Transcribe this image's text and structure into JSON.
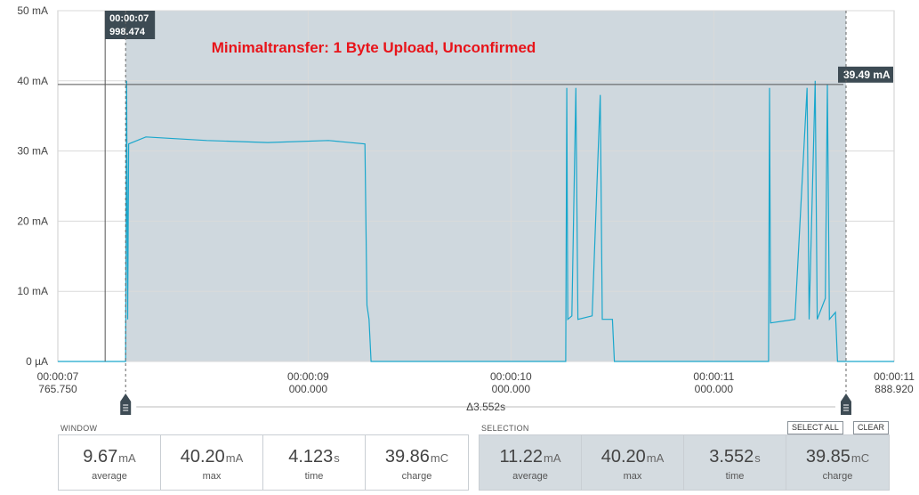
{
  "chart_data": {
    "type": "line",
    "title": "Minimaltransfer: 1 Byte Upload, Unconfirmed",
    "xlabel": "",
    "ylabel": "",
    "y_ticks": [
      "0 µA",
      "10 mA",
      "20 mA",
      "30 mA",
      "40 mA",
      "50 mA"
    ],
    "ylim": [
      0,
      50
    ],
    "y_unit": "mA",
    "x_range_s": [
      7.76575,
      11.88892
    ],
    "x_ticks": [
      {
        "t": 7.76575,
        "time": "00:00:07",
        "sub": "765.750"
      },
      {
        "t": 9.0,
        "time": "00:00:09",
        "sub": "000.000"
      },
      {
        "t": 10.0,
        "time": "00:00:10",
        "sub": "000.000"
      },
      {
        "t": 11.0,
        "time": "00:00:11",
        "sub": "000.000"
      },
      {
        "t": 11.88892,
        "time": "00:00:11",
        "sub": "888.920"
      }
    ],
    "grid": true,
    "series": [
      {
        "color": "#1aa7cc",
        "points": [
          [
            7.76575,
            0
          ],
          [
            8.1,
            0
          ],
          [
            8.105,
            40
          ],
          [
            8.11,
            6
          ],
          [
            8.115,
            31
          ],
          [
            8.2,
            32
          ],
          [
            8.5,
            31.5
          ],
          [
            8.8,
            31.2
          ],
          [
            9.1,
            31.5
          ],
          [
            9.28,
            31
          ],
          [
            9.29,
            8
          ],
          [
            9.3,
            6
          ],
          [
            9.31,
            0
          ],
          [
            10.27,
            0
          ],
          [
            10.275,
            39
          ],
          [
            10.28,
            6
          ],
          [
            10.3,
            6.5
          ],
          [
            10.32,
            39
          ],
          [
            10.33,
            6
          ],
          [
            10.4,
            6.5
          ],
          [
            10.44,
            38
          ],
          [
            10.45,
            6
          ],
          [
            10.5,
            6
          ],
          [
            10.51,
            0
          ],
          [
            11.27,
            0
          ],
          [
            11.275,
            39
          ],
          [
            11.28,
            5.5
          ],
          [
            11.4,
            6
          ],
          [
            11.46,
            39
          ],
          [
            11.47,
            6
          ],
          [
            11.5,
            40
          ],
          [
            11.51,
            6
          ],
          [
            11.55,
            9
          ],
          [
            11.56,
            39.5
          ],
          [
            11.57,
            6
          ],
          [
            11.6,
            7
          ],
          [
            11.61,
            0
          ],
          [
            11.88892,
            0
          ]
        ]
      }
    ],
    "cursor_left": {
      "t": 7.999,
      "time": "00:00:07",
      "value": "998.474"
    },
    "horizontal_marker": {
      "value": 39.49,
      "label": "39.49 mA"
    },
    "selection": {
      "start_s": 8.1,
      "end_s": 11.652,
      "delta_label": "Δ3.552s"
    }
  },
  "window_stats": {
    "title": "WINDOW",
    "items": [
      {
        "value": "9.67",
        "unit": "mA",
        "label": "average"
      },
      {
        "value": "40.20",
        "unit": "mA",
        "label": "max"
      },
      {
        "value": "4.123",
        "unit": "s",
        "label": "time"
      },
      {
        "value": "39.86",
        "unit": "mC",
        "label": "charge"
      }
    ]
  },
  "selection_stats": {
    "title": "SELECTION",
    "select_all_label": "SELECT ALL",
    "clear_label": "CLEAR",
    "items": [
      {
        "value": "11.22",
        "unit": "mA",
        "label": "average"
      },
      {
        "value": "40.20",
        "unit": "mA",
        "label": "max"
      },
      {
        "value": "3.552",
        "unit": "s",
        "label": "time"
      },
      {
        "value": "39.85",
        "unit": "mC",
        "label": "charge"
      }
    ]
  },
  "colors": {
    "trace": "#1aa7cc",
    "selection": "#cfd8de",
    "title": "#e8141a",
    "marker": "#3d4b54"
  }
}
